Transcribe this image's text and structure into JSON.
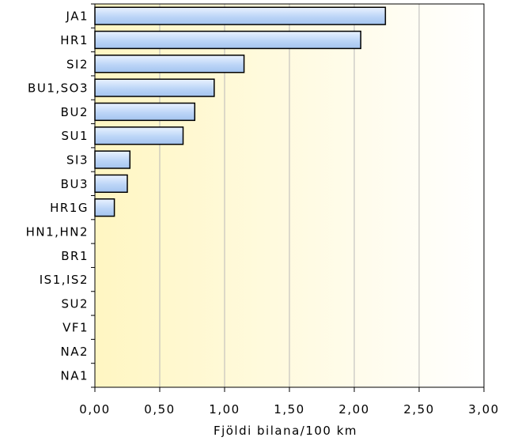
{
  "chart_data": {
    "type": "bar",
    "orientation": "horizontal",
    "categories": [
      "JA1",
      "HR1",
      "SI2",
      "BU1,SO3",
      "BU2",
      "SU1",
      "SI3",
      "BU3",
      "HR1G",
      "HN1,HN2",
      "BR1",
      "IS1,IS2",
      "SU2",
      "VF1",
      "NA2",
      "NA1"
    ],
    "values": [
      2.24,
      2.05,
      1.15,
      0.92,
      0.77,
      0.68,
      0.27,
      0.25,
      0.15,
      0,
      0,
      0,
      0,
      0,
      0,
      0
    ],
    "title": "",
    "xlabel": "Fjöldi bilana/100 km",
    "ylabel": "",
    "xlim": [
      0,
      3
    ],
    "xticks": [
      "0,00",
      "0,50",
      "1,00",
      "1,50",
      "2,00",
      "2,50",
      "3,00"
    ],
    "grid": "vertical",
    "legend": "none",
    "colors": {
      "bar_fill_light": "#e8f1ff",
      "bar_fill_dark": "#a9c8f2",
      "bar_stroke": "#000000",
      "background_left": "#fff6c2",
      "background_right": "#ffffff",
      "gridline": "#b8b8b8"
    }
  }
}
